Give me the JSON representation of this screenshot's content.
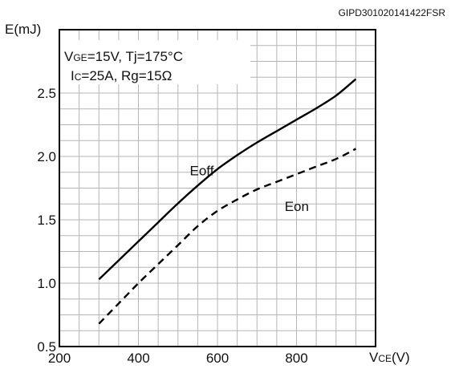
{
  "figure_code": "GIPD301020141422FSR",
  "conditions": {
    "line1": {
      "vge": "V",
      "vge_sub": "GE",
      "rest": "=15V, Tj=175°C"
    },
    "line2": {
      "ic": "I",
      "ic_sub": "C",
      "rest": "=25A,  Rg=15Ω"
    }
  },
  "chart_data": {
    "type": "line",
    "ylabel": "E(mJ)",
    "xlabel": {
      "main": "V",
      "sub": "CE",
      "unit": "(V)"
    },
    "xlim": [
      200,
      1000
    ],
    "ylim": [
      0.5,
      3.0
    ],
    "x_ticks": [
      200,
      400,
      600,
      800
    ],
    "y_ticks": [
      0.5,
      1.0,
      1.5,
      2.0,
      2.5
    ],
    "y_tick_labels": [
      "0.5",
      "1.0",
      "1.5",
      "2.0",
      "2.5"
    ],
    "grid": true,
    "series": [
      {
        "name": "Eoff",
        "style": "solid",
        "x": [
          300,
          350,
          400,
          450,
          500,
          550,
          600,
          650,
          700,
          750,
          800,
          850,
          900,
          950
        ],
        "values": [
          1.03,
          1.18,
          1.33,
          1.48,
          1.63,
          1.77,
          1.9,
          2.01,
          2.11,
          2.2,
          2.29,
          2.38,
          2.48,
          2.61
        ]
      },
      {
        "name": "Eon",
        "style": "dashed",
        "x": [
          300,
          350,
          400,
          450,
          500,
          550,
          600,
          650,
          700,
          750,
          800,
          850,
          900,
          950
        ],
        "values": [
          0.68,
          0.84,
          1.0,
          1.15,
          1.3,
          1.45,
          1.57,
          1.66,
          1.74,
          1.8,
          1.86,
          1.92,
          1.98,
          2.06
        ]
      }
    ],
    "series_label_positions": [
      {
        "series": "Eoff",
        "x": 530,
        "y": 1.85
      },
      {
        "series": "Eon",
        "x": 770,
        "y": 1.57
      }
    ],
    "colors": {
      "line": "#000000",
      "grid": "#b5b5b5",
      "frame": "#000000"
    }
  }
}
